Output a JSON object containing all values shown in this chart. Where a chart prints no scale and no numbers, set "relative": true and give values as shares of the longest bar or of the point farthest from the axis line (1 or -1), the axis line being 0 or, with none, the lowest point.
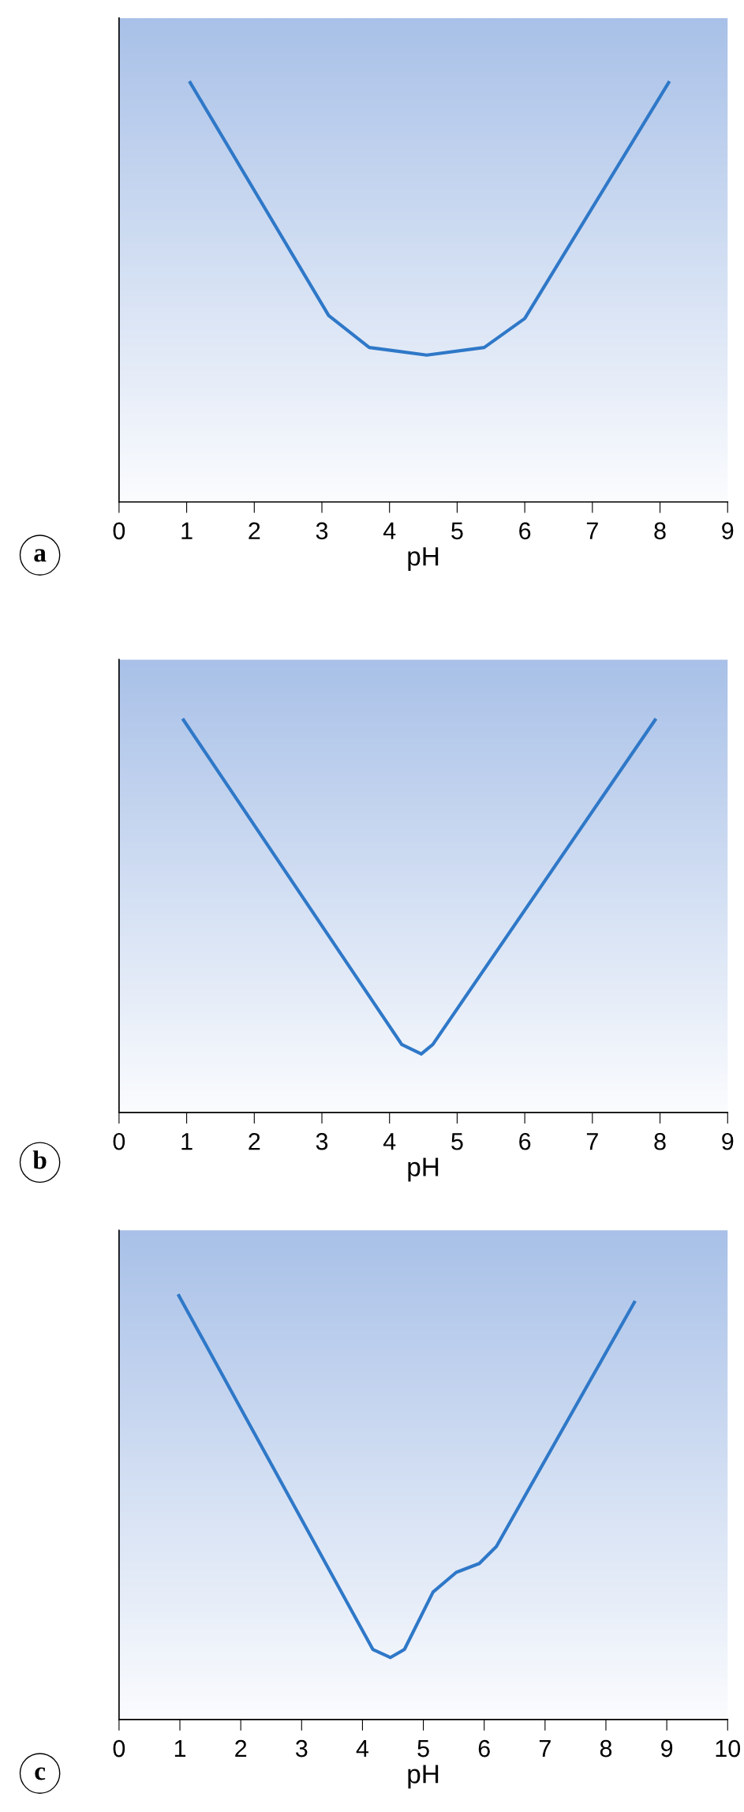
{
  "chart_data": [
    {
      "type": "line",
      "relative": true,
      "xlabel": "pH",
      "annotations": [
        "a"
      ],
      "xlim": [
        0,
        9
      ],
      "xticks": [
        0,
        1,
        2,
        3,
        4,
        5,
        6,
        7,
        8,
        9
      ],
      "tick_labels": "x",
      "grid": false,
      "legend": false,
      "series": [
        {
          "color": "#2f78c8",
          "x": [
            1.04,
            3.1,
            3.7,
            4.55,
            5.4,
            6.0,
            8.14
          ],
          "values": [
            1,
            0.443,
            0.367,
            0.349,
            0.367,
            0.436,
            1
          ]
        }
      ]
    },
    {
      "type": "line",
      "relative": true,
      "xlabel": "pH",
      "annotations": [
        "b"
      ],
      "xlim": [
        0,
        9
      ],
      "xticks": [
        0,
        1,
        2,
        3,
        4,
        5,
        6,
        7,
        8,
        9
      ],
      "tick_labels": "x",
      "grid": false,
      "legend": false,
      "series": [
        {
          "color": "#2f78c8",
          "x": [
            0.94,
            4.18,
            4.47,
            4.64,
            7.94
          ],
          "values": [
            1,
            0.173,
            0.149,
            0.173,
            1
          ]
        }
      ]
    },
    {
      "type": "line",
      "relative": true,
      "xlabel": "pH",
      "annotations": [
        "c"
      ],
      "xlim": [
        0,
        10
      ],
      "xticks": [
        0,
        1,
        2,
        3,
        4,
        5,
        6,
        7,
        8,
        9,
        10
      ],
      "tick_labels": "x",
      "grid": false,
      "legend": false,
      "series": [
        {
          "color": "#2f78c8",
          "x": [
            0.97,
            4.17,
            4.46,
            4.69,
            5.16,
            5.54,
            5.92,
            6.2,
            8.48
          ],
          "values": [
            1,
            0.165,
            0.146,
            0.165,
            0.3,
            0.346,
            0.367,
            0.407,
            0.984
          ]
        }
      ]
    }
  ]
}
